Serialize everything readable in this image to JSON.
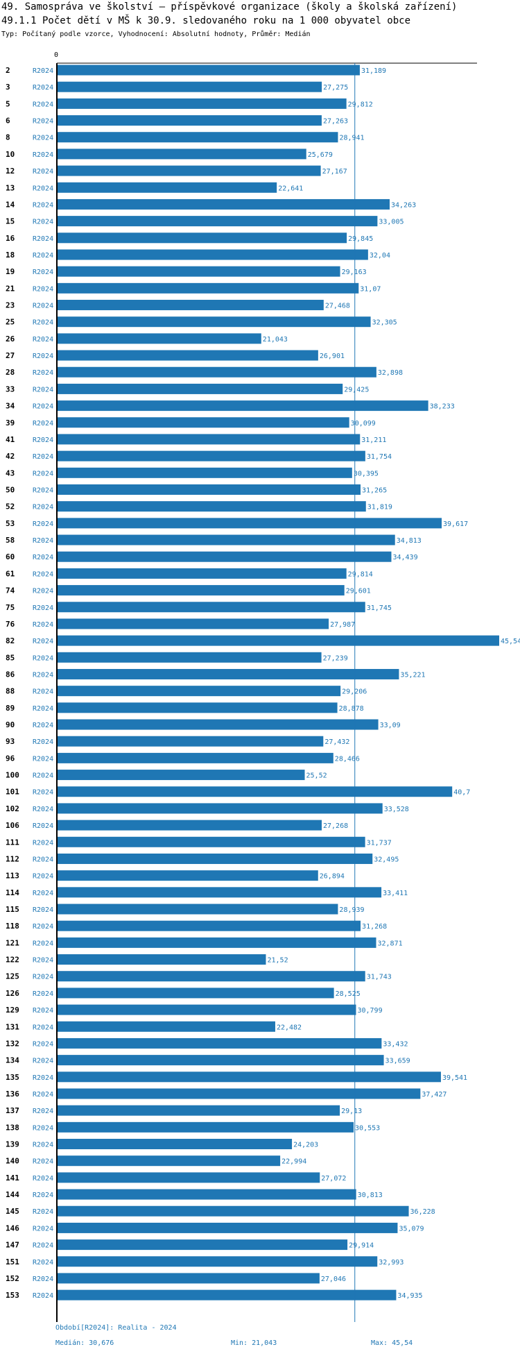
{
  "header": {
    "title": "49. Samospráva ve školství – příspěvkové organizace (školy a školská zařízení)",
    "subtitle_line": "49.1.1 Počet dětí v MŠ k 30.9. sledovaného roku na 1 000 obyvatel obce",
    "type_line": "Typ: Počítaný podle vzorce, Vyhodnocení: Absolutní hodnoty, Průměr: Medián"
  },
  "colors": {
    "bar": "#1f77b4",
    "label": "#1f77b4",
    "axis": "#000000",
    "median_line": "#1f77b4"
  },
  "chart_data": {
    "type": "bar",
    "orientation": "horizontal",
    "title": "49.1.1 Počet dětí v MŠ k 30.9. sledovaného roku na 1 000 obyvatel obce",
    "axis_start_label": "0",
    "xlim": [
      0,
      45.54
    ],
    "median": 30.676,
    "series_name": "R2024",
    "categories": [
      "2",
      "3",
      "5",
      "6",
      "8",
      "10",
      "12",
      "13",
      "14",
      "15",
      "16",
      "18",
      "19",
      "21",
      "23",
      "25",
      "26",
      "27",
      "28",
      "33",
      "34",
      "39",
      "41",
      "42",
      "43",
      "50",
      "52",
      "53",
      "58",
      "60",
      "61",
      "74",
      "75",
      "76",
      "82",
      "85",
      "86",
      "88",
      "89",
      "90",
      "93",
      "96",
      "100",
      "101",
      "102",
      "106",
      "111",
      "112",
      "113",
      "114",
      "115",
      "118",
      "121",
      "122",
      "125",
      "126",
      "129",
      "131",
      "132",
      "134",
      "135",
      "136",
      "137",
      "138",
      "139",
      "140",
      "141",
      "144",
      "145",
      "146",
      "147",
      "151",
      "152",
      "153"
    ],
    "values": [
      31.189,
      27.275,
      29.812,
      27.263,
      28.941,
      25.679,
      27.167,
      22.641,
      34.263,
      33.005,
      29.845,
      32.04,
      29.163,
      31.07,
      27.468,
      32.305,
      21.043,
      26.901,
      32.898,
      29.425,
      38.233,
      30.099,
      31.211,
      31.754,
      30.395,
      31.265,
      31.819,
      39.617,
      34.813,
      34.439,
      29.814,
      29.601,
      31.745,
      27.987,
      45.54,
      27.239,
      35.221,
      29.206,
      28.878,
      33.09,
      27.432,
      28.466,
      25.52,
      40.7,
      33.528,
      27.268,
      31.737,
      32.495,
      26.894,
      33.411,
      28.939,
      31.268,
      32.871,
      21.52,
      31.743,
      28.525,
      30.799,
      22.482,
      33.432,
      33.659,
      39.541,
      37.427,
      29.13,
      30.553,
      24.203,
      22.994,
      27.072,
      30.813,
      36.228,
      35.079,
      29.914,
      32.993,
      27.046,
      34.935
    ],
    "value_labels": [
      "31,189",
      "27,275",
      "29,812",
      "27,263",
      "28,941",
      "25,679",
      "27,167",
      "22,641",
      "34,263",
      "33,005",
      "29,845",
      "32,04",
      "29,163",
      "31,07",
      "27,468",
      "32,305",
      "21,043",
      "26,901",
      "32,898",
      "29,425",
      "38,233",
      "30,099",
      "31,211",
      "31,754",
      "30,395",
      "31,265",
      "31,819",
      "39,617",
      "34,813",
      "34,439",
      "29,814",
      "29,601",
      "31,745",
      "27,987",
      "45,54",
      "27,239",
      "35,221",
      "29,206",
      "28,878",
      "33,09",
      "27,432",
      "28,466",
      "25,52",
      "40,7",
      "33,528",
      "27,268",
      "31,737",
      "32,495",
      "26,894",
      "33,411",
      "28,939",
      "31,268",
      "32,871",
      "21,52",
      "31,743",
      "28,525",
      "30,799",
      "22,482",
      "33,432",
      "33,659",
      "39,541",
      "37,427",
      "29,13",
      "30,553",
      "24,203",
      "22,994",
      "27,072",
      "30,813",
      "36,228",
      "35,079",
      "29,914",
      "32,993",
      "27,046",
      "34,935"
    ]
  },
  "footer": {
    "period": "Období[R2024]: Realita - 2024",
    "median": "Medián: 30,676",
    "min": "Min: 21,043",
    "max": "Max: 45,54"
  }
}
